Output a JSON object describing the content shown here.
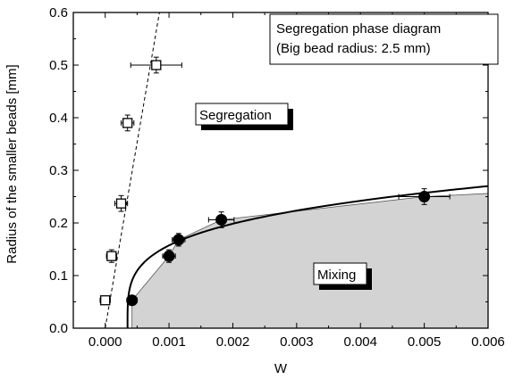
{
  "chart_data": {
    "type": "scatter",
    "title": "Segregation phase diagram",
    "subtitle": "(Big bead radius: 2.5 mm)",
    "xlabel": "W",
    "ylabel": "Radius of the smaller beads [mm]",
    "xlim": [
      -0.0005,
      0.006
    ],
    "ylim": [
      0.0,
      0.6
    ],
    "x_ticks": [
      "0.000",
      "0.001",
      "0.002",
      "0.003",
      "0.004",
      "0.005",
      "0.006"
    ],
    "y_ticks": [
      "0.0",
      "0.1",
      "0.2",
      "0.3",
      "0.4",
      "0.5",
      "0.6"
    ],
    "grid": false,
    "region_labels": {
      "segregation": "Segregation",
      "mixing": "Mixing"
    },
    "series": [
      {
        "marker": "open-square",
        "points": [
          {
            "x": 0.0,
            "y": 0.053,
            "xerr": 8e-05,
            "yerr": 0.008
          },
          {
            "x": 0.0001,
            "y": 0.137,
            "xerr": 8e-05,
            "yerr": 0.012
          },
          {
            "x": 0.00025,
            "y": 0.237,
            "xerr": 0.0001,
            "yerr": 0.015
          },
          {
            "x": 0.00035,
            "y": 0.39,
            "xerr": 0.0001,
            "yerr": 0.015
          },
          {
            "x": 0.0008,
            "y": 0.5,
            "xerr": 0.0004,
            "yerr": 0.015
          }
        ]
      },
      {
        "marker": "filled-circle",
        "points": [
          {
            "x": 0.00042,
            "y": 0.053,
            "xerr": 8e-05,
            "yerr": 0.008
          },
          {
            "x": 0.001,
            "y": 0.137,
            "xerr": 0.0001,
            "yerr": 0.012
          },
          {
            "x": 0.00115,
            "y": 0.168,
            "xerr": 0.0001,
            "yerr": 0.012
          },
          {
            "x": 0.00182,
            "y": 0.206,
            "xerr": 0.0002,
            "yerr": 0.015
          },
          {
            "x": 0.005,
            "y": 0.25,
            "xerr": 0.0004,
            "yerr": 0.015
          }
        ]
      }
    ],
    "dashed_boundary": [
      [
        0.0,
        0.0
      ],
      [
        0.00085,
        0.6
      ]
    ],
    "fit_curve": {
      "x0": 0.00035,
      "x_end": 0.006,
      "y_end": 0.27
    },
    "mixing_region_top": [
      [
        0.00042,
        0.053
      ],
      [
        0.001,
        0.137
      ],
      [
        0.00115,
        0.168
      ],
      [
        0.00182,
        0.206
      ],
      [
        0.005,
        0.25
      ],
      [
        0.006,
        0.256
      ]
    ],
    "colors": {
      "mixing_fill": "#d3d3d3",
      "ink": "#000000",
      "background": "#ffffff"
    }
  }
}
